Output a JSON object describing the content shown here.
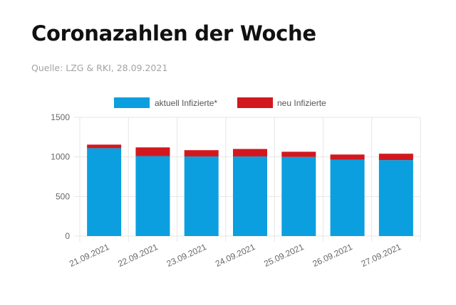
{
  "header": {
    "title": "Coronazahlen der Woche",
    "source": "Quelle: LZG & RKI, 28.09.2021"
  },
  "chart_data": {
    "type": "bar",
    "stacked": true,
    "categories": [
      "21.09.2021",
      "22.09.2021",
      "23.09.2021",
      "24.09.2021",
      "25.09.2021",
      "26.09.2021",
      "27.09.2021"
    ],
    "series": [
      {
        "name": "aktuell Infizierte*",
        "color": "#0b9fdf",
        "values": [
          1110,
          1010,
          1005,
          1005,
          1000,
          965,
          960
        ]
      },
      {
        "name": "neu Infizierte",
        "color": "#d2181e",
        "values": [
          45,
          110,
          80,
          95,
          65,
          65,
          80
        ]
      }
    ],
    "ylim": [
      0,
      1500
    ],
    "yticks": [
      0,
      500,
      1000,
      1500
    ],
    "grid": true,
    "legend": "top"
  }
}
